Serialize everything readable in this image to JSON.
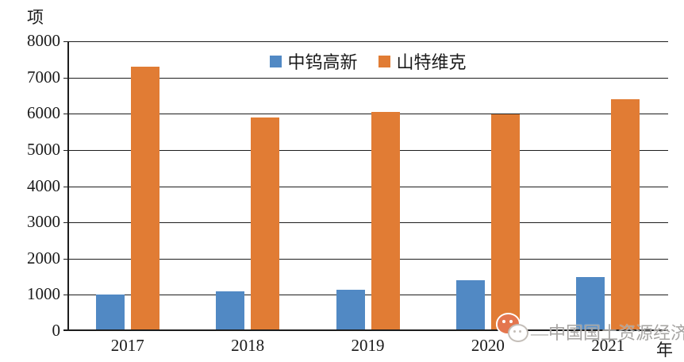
{
  "chart_data": {
    "type": "bar",
    "title": "",
    "unit_label": "项",
    "xlabel": "年",
    "categories": [
      "2017",
      "2018",
      "2019",
      "2020",
      "2021"
    ],
    "series": [
      {
        "name": "中钨高新",
        "color": "#5189C4",
        "values": [
          1000,
          1100,
          1150,
          1400,
          1500
        ]
      },
      {
        "name": "山特维克",
        "color": "#E17C34",
        "values": [
          7300,
          5890,
          6050,
          5980,
          6400
        ]
      }
    ],
    "ylim": [
      0,
      8000
    ],
    "ytick_step": 1000,
    "yticks": [
      "0",
      "1000",
      "2000",
      "3000",
      "4000",
      "5000",
      "6000",
      "7000",
      "8000"
    ],
    "grid": true,
    "legend_position": "top-center"
  },
  "watermark": {
    "dash": "—",
    "text": "中国国土资源经济",
    "logo": "wechat-chat-bubbles-icon",
    "logo_color": "#e4764e",
    "text_color": "#969492"
  },
  "colors": {
    "axis": "#1d1d1d",
    "background": "#ffffff"
  }
}
